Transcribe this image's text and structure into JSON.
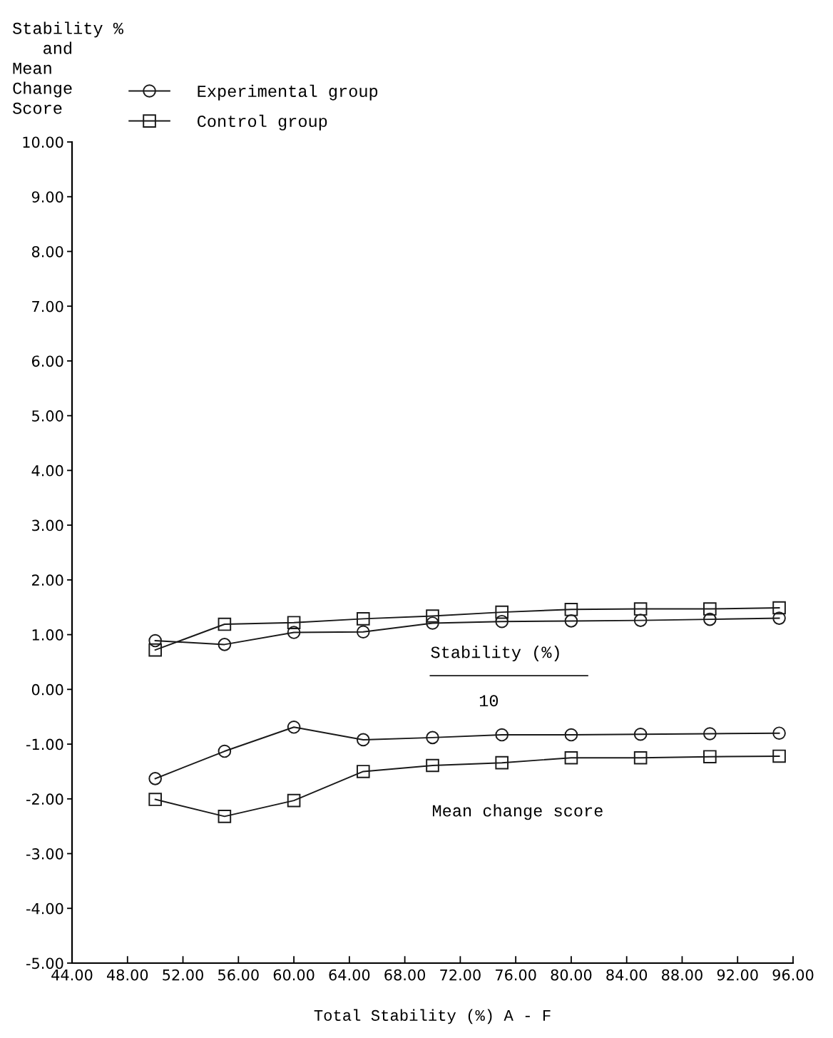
{
  "chart_data": {
    "type": "line",
    "ylabel": "Stability %\n   and\nMean\nChange\nScore",
    "xlabel": "Total Stability (%) A - F",
    "x": [
      50,
      55,
      60,
      65,
      70,
      75,
      80,
      85,
      90,
      95
    ],
    "series": [
      {
        "name": "Experimental group",
        "color": "#1a1a1a",
        "marker": "circle",
        "values": [
          0.89,
          0.82,
          1.04,
          1.05,
          1.21,
          1.24,
          1.25,
          1.26,
          1.28,
          1.3
        ]
      },
      {
        "name": "Control group",
        "color": "#1a1a1a",
        "marker": "square",
        "values": [
          0.72,
          1.19,
          1.22,
          1.29,
          1.34,
          1.41,
          1.46,
          1.47,
          1.47,
          1.49
        ]
      },
      {
        "color": "#1a1a1a",
        "marker": "circle",
        "values": [
          -1.63,
          -1.13,
          -0.69,
          -0.92,
          -0.88,
          -0.83,
          -0.83,
          -0.82,
          -0.81,
          -0.8
        ]
      },
      {
        "color": "#1a1a1a",
        "marker": "square",
        "values": [
          -2.01,
          -2.32,
          -2.03,
          -1.5,
          -1.39,
          -1.34,
          -1.25,
          -1.25,
          -1.23,
          -1.22
        ]
      }
    ],
    "xlim": [
      44,
      96
    ],
    "xticks": [
      {
        "value": 44,
        "label": "44.00"
      },
      {
        "value": 48,
        "label": "48.00"
      },
      {
        "value": 52,
        "label": "52.00"
      },
      {
        "value": 56,
        "label": "56.00"
      },
      {
        "value": 60,
        "label": "60.00"
      },
      {
        "value": 64,
        "label": "64.00"
      },
      {
        "value": 68,
        "label": "68.00"
      },
      {
        "value": 72,
        "label": "72.00"
      },
      {
        "value": 76,
        "label": "76.00"
      },
      {
        "value": 80,
        "label": "80.00"
      },
      {
        "value": 84,
        "label": "84.00"
      },
      {
        "value": 88,
        "label": "88.00"
      },
      {
        "value": 92,
        "label": "92.00"
      },
      {
        "value": 96,
        "label": "96.00"
      }
    ],
    "ylim": [
      -5,
      10
    ],
    "yticks": [
      {
        "value": -5,
        "label": "-5.00"
      },
      {
        "value": -4,
        "label": "-4.00"
      },
      {
        "value": -3,
        "label": "-3.00"
      },
      {
        "value": -2,
        "label": "-2.00"
      },
      {
        "value": -1,
        "label": "-1.00"
      },
      {
        "value": 0,
        "label": "0.00"
      },
      {
        "value": 1,
        "label": "1.00"
      },
      {
        "value": 2,
        "label": "2.00"
      },
      {
        "value": 3,
        "label": "3.00"
      },
      {
        "value": 4,
        "label": "4.00"
      },
      {
        "value": 5,
        "label": "5.00"
      },
      {
        "value": 6,
        "label": "6.00"
      },
      {
        "value": 7,
        "label": "7.00"
      },
      {
        "value": 8,
        "label": "8.00"
      },
      {
        "value": 9,
        "label": "9.00"
      },
      {
        "value": 10,
        "label": "10.00"
      }
    ],
    "annotations": [
      "Stability (%)",
      "10",
      "Mean change score"
    ],
    "legend": "top left",
    "line_style": "solid"
  }
}
